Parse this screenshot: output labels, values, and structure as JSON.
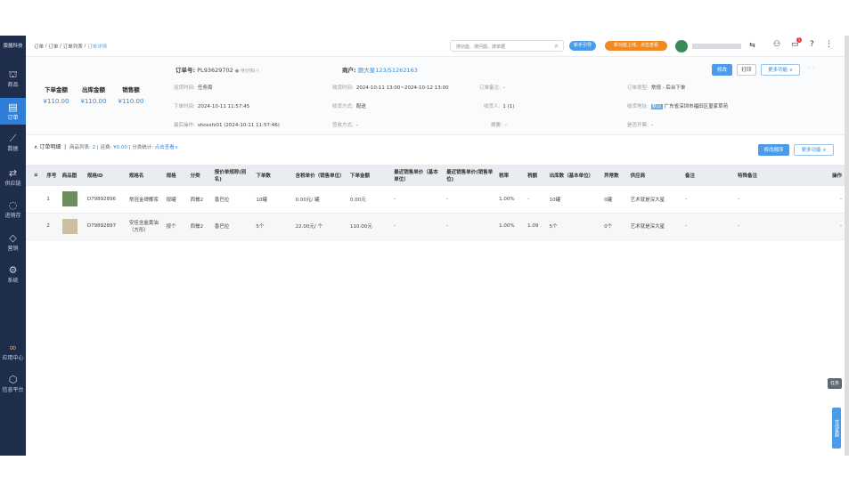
{
  "sidebar": {
    "logo": "版酱科技",
    "items": [
      {
        "label": "商品",
        "icon": "bag-icon"
      },
      {
        "label": "订单",
        "icon": "order-icon",
        "active": true
      },
      {
        "label": "数据",
        "icon": "chart-icon"
      },
      {
        "label": "供应链",
        "icon": "supply-icon"
      },
      {
        "label": "进销存",
        "icon": "inventory-icon"
      },
      {
        "label": "营销",
        "icon": "tag-icon"
      },
      {
        "label": "系统",
        "icon": "gear-icon"
      },
      {
        "label": "应用中心",
        "icon": "apps-icon"
      },
      {
        "label": "信息平台",
        "icon": "cube-icon"
      }
    ]
  },
  "breadcrumb": [
    "订单",
    "订单",
    "订单列表",
    "订单详情"
  ],
  "topbar": {
    "search_placeholder": "搜功能、搜问题、搜单据",
    "guide": "新手引导",
    "new_feature": "新功能上线，点击查看",
    "notif_count": "1",
    "guide_color": "#4a9be8",
    "feature_color": "#f08a24"
  },
  "summary": {
    "order_amount_label": "下单金额",
    "order_amount": "¥110.00",
    "out_amount_label": "出库金额",
    "out_amount": "¥110.00",
    "sales_label": "销售额",
    "sales": "¥110.00"
  },
  "order": {
    "no_label": "订单号:",
    "no": "PL93629702",
    "status": "● 待分拣(-)",
    "customer_label": "商户:",
    "customer": "跟大星123/S1262163"
  },
  "fields": {
    "ship_time": {
      "label": "运货时间:",
      "value": "任务周"
    },
    "order_time": {
      "label": "下单时间:",
      "value": "2024-10-11 11:57:45"
    },
    "last_op": {
      "label": "最后操作:",
      "value": "shceshi01  (2024-10-11 11:57:46)"
    },
    "recv_time": {
      "label": "收货时间:",
      "value": "2024-10-11 13:00~2024-10-12 13:00"
    },
    "recv_method": {
      "label": "收货方式:",
      "value": "配送"
    },
    "sign_method": {
      "label": "签收方式:",
      "value": "-"
    },
    "remark": {
      "label": "订单备注:",
      "value": "-"
    },
    "receiver": {
      "label": "收货人:",
      "value": "1 (1)"
    },
    "summary": {
      "label": "摘要:",
      "value": "-"
    },
    "type": {
      "label": "订单类型:",
      "value": "常规 - 后台下单"
    },
    "address": {
      "label": "收货地址:",
      "tag": "默认",
      "value": "广东省深圳市福田区皇家草苑"
    },
    "invoice": {
      "label": "是否开票:",
      "value": "-"
    }
  },
  "actions": {
    "edit": "修改",
    "print": "打印",
    "more": "更多功能 ∨"
  },
  "detail": {
    "title": "订单明细",
    "goods_label": "商品列表:",
    "goods_count": "2",
    "freight_label": "运费:",
    "freight": "¥0.00",
    "category_label": "分类统计:",
    "category_link": "点击查看",
    "reorder": "修改顺序",
    "more": "更多功能 ∨"
  },
  "table": {
    "headers": [
      "序号",
      "商品图",
      "规格ID",
      "规格名",
      "规格",
      "分类",
      "报价单规称(别名)",
      "下单数",
      "含税单价（销售单位）",
      "下单金额",
      "最近销售单价（基本单位）",
      "最近销售单价(销售单位)",
      "税率",
      "税额",
      "出库数（基本单位）",
      "异常数",
      "供应商",
      "备注",
      "特殊备注",
      "操作"
    ],
    "rows": [
      [
        "1",
        "",
        "D79892896",
        "常冠金碑椰浆",
        "按罐",
        "西餐2",
        "香巴拉",
        "10罐",
        "0.00元/ 罐",
        "0.00元",
        "-",
        "-",
        "1.00%",
        "-",
        "10罐",
        "0罐",
        "艺术就是深大星",
        "-",
        "-",
        "-"
      ],
      [
        "2",
        "",
        "D79892897",
        "安佳含盐黄油（方形）",
        "按个",
        "西餐2",
        "香巴拉",
        "5个",
        "22.00元/ 个",
        "110.00元",
        "-",
        "-",
        "1.00%",
        "1.09",
        "5个",
        "0个",
        "艺术就是深大星",
        "-",
        "-",
        "-"
      ]
    ]
  },
  "floating": {
    "task": "任务",
    "service": "在线客服"
  }
}
